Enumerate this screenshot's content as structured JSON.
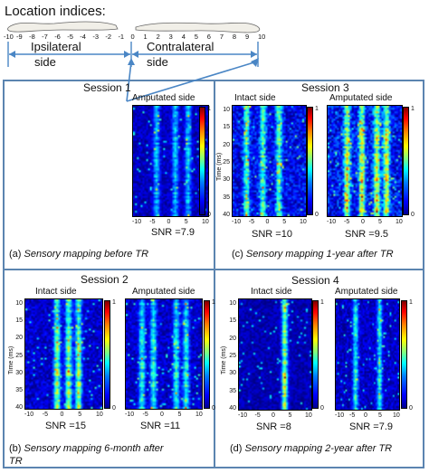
{
  "header": {
    "title": "Location indices:",
    "index_labels": [
      "-10",
      "-9",
      "-8",
      "-7",
      "-6",
      "-5",
      "-4",
      "-3",
      "-2",
      "-1",
      "0",
      "1",
      "2",
      "3",
      "4",
      "5",
      "6",
      "7",
      "8",
      "9",
      "10"
    ],
    "ipsilateral_label": "Ipsilateral",
    "ipsilateral_sub": "side",
    "contralateral_label": "Contralateral",
    "contralateral_sub": "side"
  },
  "colors": {
    "panel_border": "#5b84b0",
    "arrow": "#4a86c5",
    "heat_low": "#00008f",
    "heat_high": "#800000"
  },
  "colorbar_ticks": {
    "top": "1",
    "bottom": "0"
  },
  "x_ticks": [
    "-10",
    "-5",
    "0",
    "5",
    "10"
  ],
  "y_ticks": [
    "10",
    "15",
    "20",
    "25",
    "30",
    "35",
    "40"
  ],
  "y_axis_label": "Time (ms)",
  "panels": {
    "a": {
      "session": "Session 1",
      "maps": [
        {
          "side": "Amputated side",
          "snr": "SNR =7.9"
        }
      ],
      "caption_prefix": "(a) ",
      "caption": "Sensory mapping before TR"
    },
    "b": {
      "session": "Session 2",
      "maps": [
        {
          "side": "Intact side",
          "snr": "SNR =15"
        },
        {
          "side": "Amputated side",
          "snr": "SNR =11"
        }
      ],
      "caption_prefix": "(b) ",
      "caption": "Sensory mapping 6-month after",
      "caption_line2": "TR"
    },
    "c": {
      "session": "Session 3",
      "maps": [
        {
          "side": "Intact side",
          "snr": "SNR =10"
        },
        {
          "side": "Amputated side",
          "snr": "SNR =9.5"
        }
      ],
      "caption_prefix": "(c) ",
      "caption": "Sensory mapping 1-year after TR"
    },
    "d": {
      "session": "Session 4",
      "maps": [
        {
          "side": "Intact side",
          "snr": "SNR =8"
        },
        {
          "side": "Amputated side",
          "snr": "SNR =7.9"
        }
      ],
      "caption_prefix": "(d) ",
      "caption": "Sensory mapping 2-year after TR"
    }
  }
}
